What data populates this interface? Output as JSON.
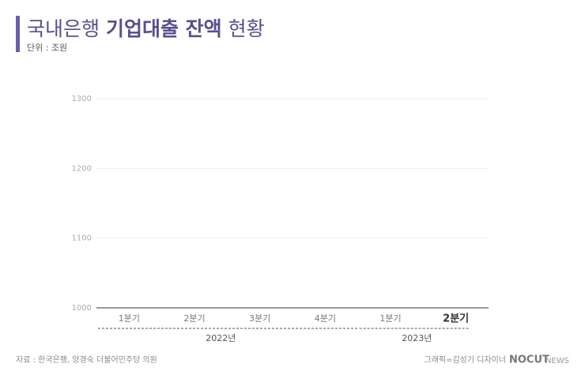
{
  "title_parts": [
    "국내은행 ",
    "기업대출 잔액",
    " 현황"
  ],
  "subtitle": "단위 : 조원",
  "chart_data": {
    "type": "bar",
    "categories": [
      "1분기",
      "2분기",
      "3분기",
      "4분기",
      "1분기",
      "2분기"
    ],
    "groups": [
      {
        "label": "2022년",
        "size": 4
      },
      {
        "label": "2023년",
        "size": 2
      }
    ],
    "highlight_category": 5,
    "ylim": [
      1000,
      1300
    ],
    "yticks": [
      1000,
      1100,
      1200,
      1300
    ],
    "grid": true
  },
  "source": "자료 : 한국은행, 양경숙 더불어민주당 의원",
  "credit": "그래픽=김성기 디자이너",
  "logo": [
    "NOCUT",
    "NEWS"
  ]
}
